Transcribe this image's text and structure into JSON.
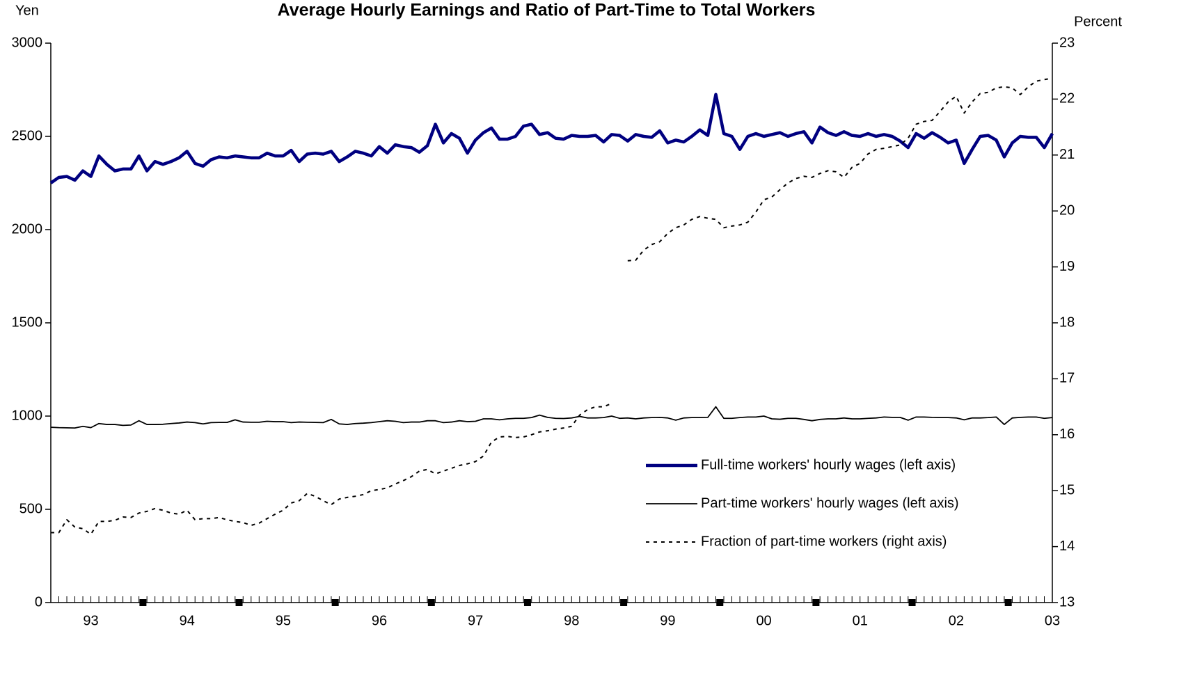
{
  "chart_data": {
    "type": "line",
    "title": "Average Hourly Earnings and Ratio of Part-Time to Total Workers",
    "ylabel": "Yen",
    "y2label": "Percent",
    "categories": [
      null,
      null,
      null,
      null,
      null,
      "93",
      null,
      null,
      null,
      null,
      null,
      null,
      null,
      null,
      null,
      null,
      null,
      "94",
      null,
      null,
      null,
      null,
      null,
      null,
      null,
      null,
      null,
      null,
      null,
      "95",
      null,
      null,
      null,
      null,
      null,
      null,
      null,
      null,
      null,
      null,
      null,
      "96",
      null,
      null,
      null,
      null,
      null,
      null,
      null,
      null,
      null,
      null,
      null,
      "97",
      null,
      null,
      null,
      null,
      null,
      null,
      null,
      null,
      null,
      null,
      null,
      "98",
      null,
      null,
      null,
      null,
      null,
      null,
      null,
      null,
      null,
      null,
      null,
      "99",
      null,
      null,
      null,
      null,
      null,
      null,
      null,
      null,
      null,
      null,
      null,
      "00",
      null,
      null,
      null,
      null,
      null,
      null,
      null,
      null,
      null,
      null,
      null,
      "01",
      null,
      null,
      null,
      null,
      null,
      null,
      null,
      null,
      null,
      null,
      null,
      "02",
      null,
      null,
      null,
      null,
      null,
      null,
      null,
      null,
      null,
      null,
      null,
      "03"
    ],
    "ylim": [
      0,
      3000
    ],
    "yticks": [
      0,
      500,
      1000,
      1500,
      2000,
      2500,
      3000
    ],
    "y2lim": [
      13,
      23
    ],
    "y2ticks": [
      13,
      14,
      15,
      16,
      17,
      18,
      19,
      20,
      21,
      22,
      23
    ],
    "legend": "lower right",
    "series": [
      {
        "name": "Full-time workers' hourly wages (left axis)",
        "color": "#000080",
        "width": 4.5,
        "dashed": false,
        "values": [
          2250,
          2280,
          2285,
          2265,
          2315,
          2285,
          2395,
          2350,
          2315,
          2325,
          2325,
          2395,
          2315,
          2365,
          2350,
          2365,
          2385,
          2420,
          2355,
          2340,
          2375,
          2390,
          2385,
          2395,
          2390,
          2385,
          2385,
          2410,
          2395,
          2395,
          2425,
          2365,
          2405,
          2410,
          2405,
          2420,
          2365,
          2390,
          2420,
          2410,
          2395,
          2445,
          2410,
          2455,
          2445,
          2440,
          2415,
          2450,
          2565,
          2465,
          2515,
          2490,
          2410,
          2480,
          2520,
          2545,
          2485,
          2485,
          2500,
          2555,
          2565,
          2510,
          2520,
          2490,
          2485,
          2505,
          2500,
          2500,
          2505,
          2470,
          2510,
          2505,
          2475,
          2510,
          2500,
          2495,
          2530,
          2465,
          2480,
          2470,
          2500,
          2535,
          2505,
          2725,
          2515,
          2500,
          2430,
          2500,
          2515,
          2500,
          2510,
          2520,
          2500,
          2515,
          2525,
          2465,
          2550,
          2520,
          2505,
          2525,
          2505,
          2500,
          2515,
          2500,
          2510,
          2500,
          2475,
          2440,
          2515,
          2490,
          2520,
          2495,
          2465,
          2480,
          2355,
          2430,
          2500,
          2505,
          2480,
          2390,
          2465,
          2500,
          2495,
          2495,
          2440,
          2515
        ]
      },
      {
        "name": "Part-time workers' hourly wages (left axis)",
        "color": "#000000",
        "width": 1.8,
        "dashed": false,
        "values": [
          940,
          938,
          937,
          936,
          945,
          938,
          960,
          955,
          955,
          950,
          952,
          975,
          955,
          955,
          956,
          960,
          963,
          968,
          965,
          958,
          965,
          966,
          966,
          980,
          968,
          967,
          967,
          972,
          970,
          970,
          965,
          968,
          967,
          966,
          965,
          982,
          958,
          955,
          960,
          962,
          965,
          970,
          975,
          972,
          965,
          968,
          968,
          975,
          975,
          965,
          968,
          975,
          970,
          972,
          985,
          985,
          980,
          985,
          988,
          988,
          992,
          1005,
          993,
          988,
          987,
          990,
          998,
          990,
          990,
          992,
          1000,
          988,
          990,
          985,
          990,
          992,
          993,
          990,
          978,
          990,
          992,
          992,
          993,
          1050,
          988,
          988,
          992,
          995,
          995,
          1000,
          985,
          983,
          988,
          988,
          982,
          975,
          982,
          985,
          985,
          990,
          985,
          985,
          988,
          990,
          995,
          993,
          993,
          978,
          995,
          995,
          993,
          992,
          992,
          990,
          980,
          990,
          990,
          992,
          995,
          955,
          990,
          993,
          995,
          995,
          988,
          992
        ]
      },
      {
        "name": "Fraction of part-time workers (right axis)",
        "color": "#000000",
        "width": 2,
        "dashed": true,
        "axis": "y2",
        "values": [
          14.25,
          14.25,
          14.48,
          14.35,
          14.32,
          14.22,
          14.45,
          14.45,
          14.47,
          14.53,
          14.52,
          14.6,
          14.63,
          14.68,
          14.65,
          14.6,
          14.58,
          14.65,
          14.48,
          14.5,
          14.5,
          14.52,
          14.48,
          14.45,
          14.43,
          14.38,
          14.42,
          14.5,
          14.58,
          14.65,
          14.78,
          14.82,
          14.95,
          14.9,
          14.82,
          14.75,
          14.85,
          14.88,
          14.9,
          14.93,
          15.0,
          15.02,
          15.05,
          15.12,
          15.18,
          15.25,
          15.35,
          15.38,
          15.3,
          15.35,
          15.4,
          15.45,
          15.48,
          15.52,
          15.62,
          15.87,
          15.96,
          15.97,
          15.95,
          15.96,
          16.0,
          16.05,
          16.07,
          16.1,
          16.12,
          16.15,
          16.35,
          16.45,
          16.5,
          16.5,
          16.56,
          null,
          19.11,
          19.12,
          19.3,
          19.4,
          19.45,
          19.6,
          19.7,
          19.75,
          19.85,
          19.9,
          19.87,
          19.85,
          19.7,
          19.73,
          19.75,
          19.8,
          19.98,
          20.2,
          20.25,
          20.38,
          20.5,
          20.58,
          20.62,
          20.6,
          20.67,
          20.72,
          20.7,
          20.6,
          20.78,
          20.85,
          21.02,
          21.1,
          21.12,
          21.15,
          21.18,
          21.3,
          21.55,
          21.6,
          21.62,
          21.78,
          21.95,
          22.05,
          21.75,
          21.95,
          22.1,
          22.12,
          22.2,
          22.22,
          22.2,
          22.08,
          22.22,
          22.32,
          22.35,
          22.37
        ]
      }
    ]
  }
}
